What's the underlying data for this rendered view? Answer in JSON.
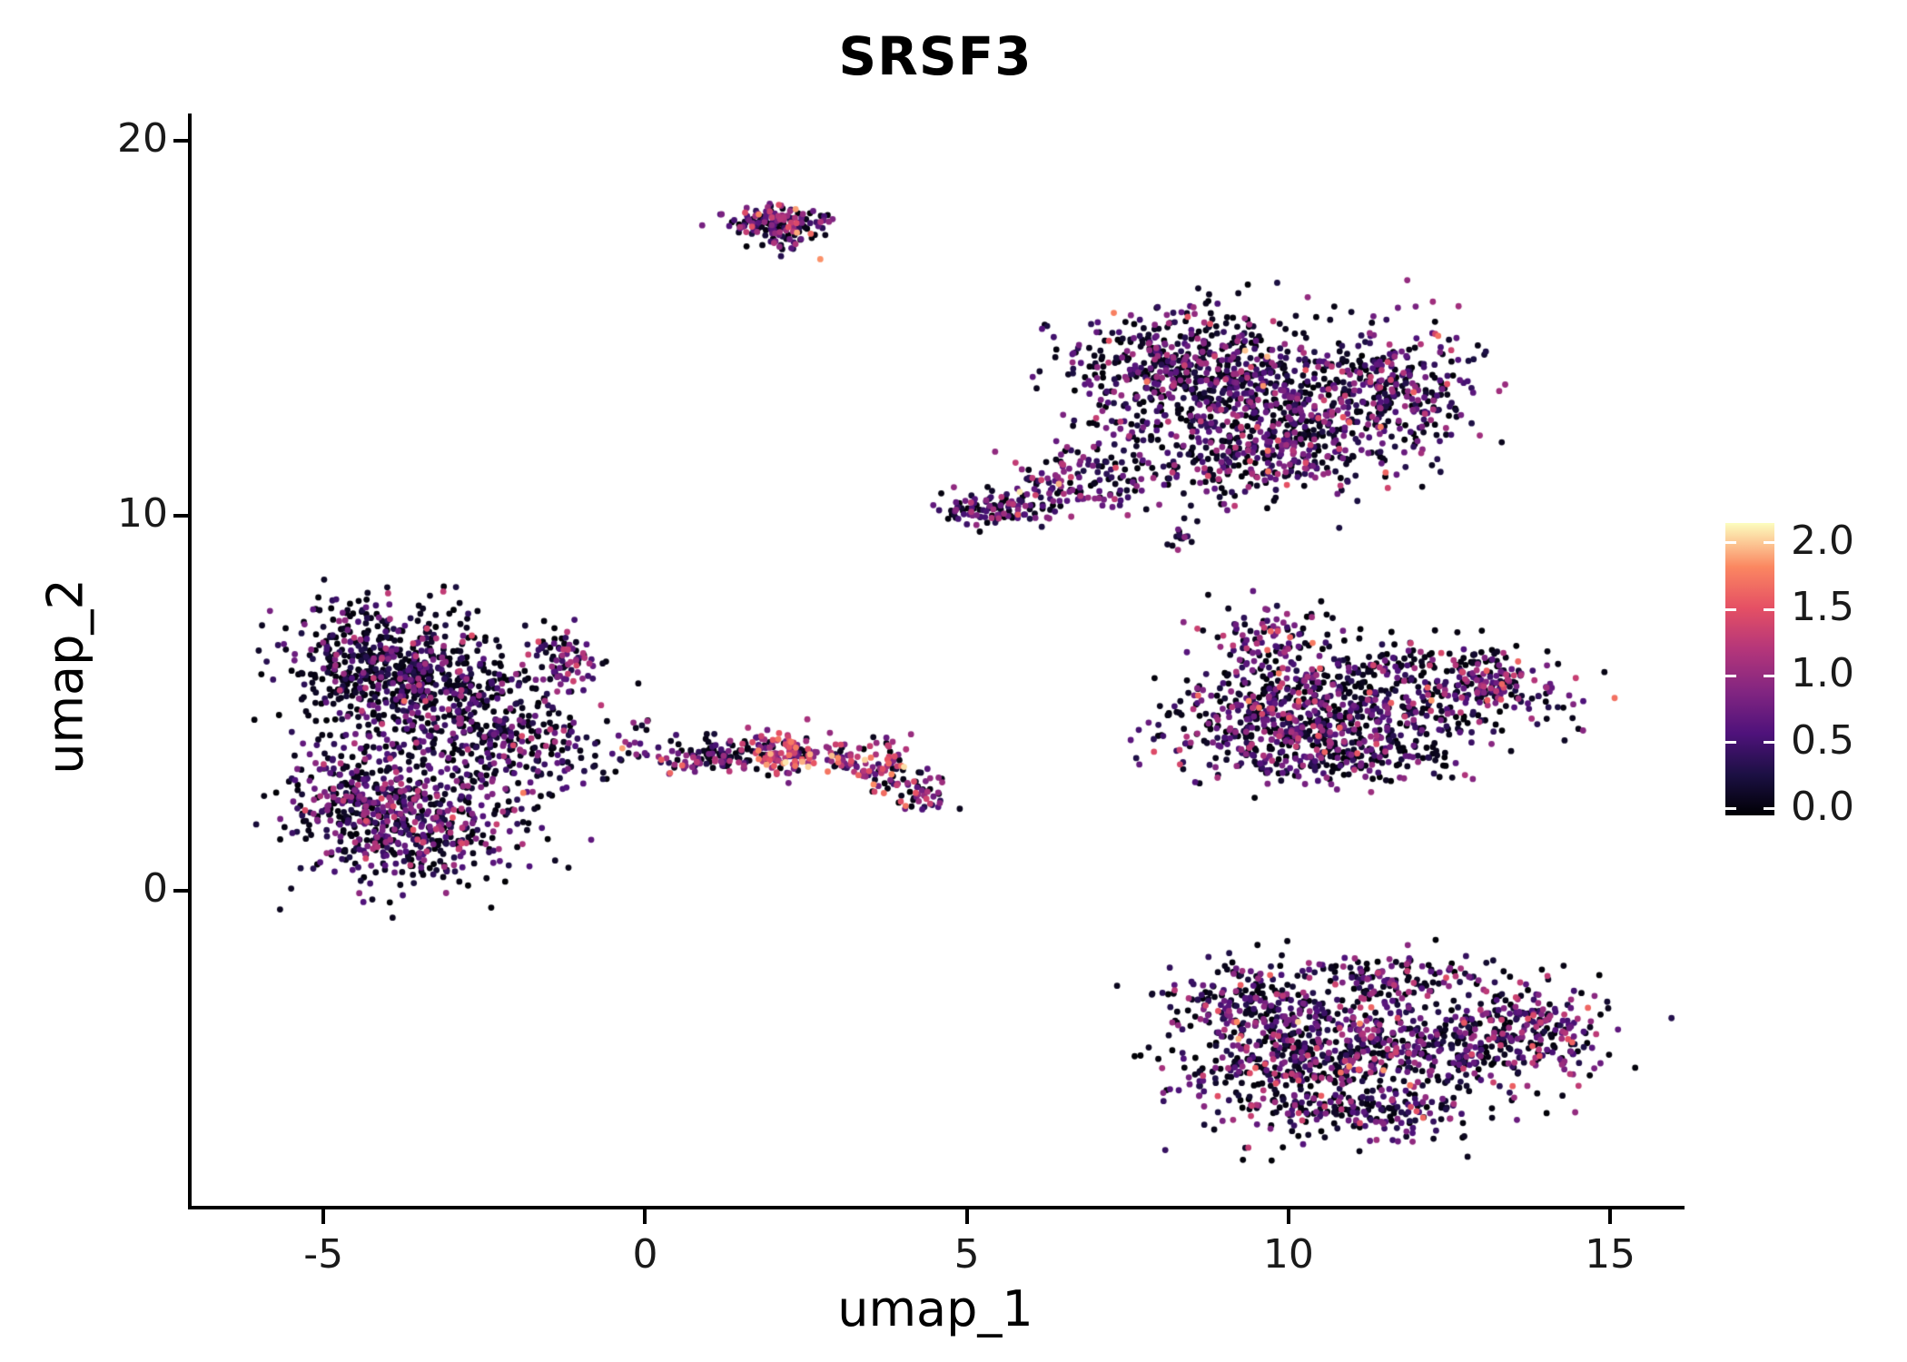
{
  "chart_data": {
    "type": "scatter",
    "title": "SRSF3",
    "xlabel": "umap_1",
    "ylabel": "umap_2",
    "xlim": [
      -7.05,
      16.1
    ],
    "ylim": [
      -8.4,
      20.66
    ],
    "x_ticks": [
      -5,
      0,
      5,
      10,
      15
    ],
    "x_tick_labels": [
      "-5",
      "0",
      "5",
      "10",
      "15"
    ],
    "y_ticks": [
      0,
      10,
      20
    ],
    "y_tick_labels": [
      "0",
      "10",
      "20"
    ],
    "grid": false,
    "legend_position": "right",
    "colorbar": {
      "vmin": -0.05,
      "vmax": 2.15,
      "ticks": [
        0.0,
        0.5,
        1.0,
        1.5,
        2.0
      ],
      "tick_labels": [
        "0.0",
        "0.5",
        "1.0",
        "1.5",
        "2.0"
      ],
      "colormap": "magma",
      "stops": [
        {
          "t": 0.0,
          "color": "#000004"
        },
        {
          "t": 0.14,
          "color": "#1c1044"
        },
        {
          "t": 0.28,
          "color": "#4f127b"
        },
        {
          "t": 0.42,
          "color": "#812581"
        },
        {
          "t": 0.57,
          "color": "#b5367a"
        },
        {
          "t": 0.71,
          "color": "#e55064"
        },
        {
          "t": 0.85,
          "color": "#fb8761"
        },
        {
          "t": 1.0,
          "color": "#fcfdbf"
        }
      ]
    },
    "point": {
      "radius": 3.4,
      "vmax": 2.2,
      "seed": 12345
    },
    "clusters": [
      {
        "name": "top-small-cluster",
        "blobs": [
          {
            "cx": 2.0,
            "cy": 17.85,
            "sx": 0.42,
            "sy": 0.22,
            "n": 150,
            "hot": 0.8,
            "zero": 0.3
          },
          {
            "cx": 2.15,
            "cy": 17.35,
            "sx": 0.18,
            "sy": 0.18,
            "n": 25,
            "hot": 0.7,
            "zero": 0.3
          }
        ]
      },
      {
        "name": "upper-right-cluster",
        "blobs": [
          {
            "cx": 8.4,
            "cy": 13.9,
            "sx": 0.95,
            "sy": 0.85,
            "n": 520,
            "hot": 0.55,
            "zero": 0.38
          },
          {
            "cx": 10.2,
            "cy": 13.0,
            "sx": 1.05,
            "sy": 0.95,
            "n": 520,
            "hot": 0.6,
            "zero": 0.33
          },
          {
            "cx": 11.8,
            "cy": 13.4,
            "sx": 0.55,
            "sy": 0.75,
            "n": 190,
            "hot": 0.65,
            "zero": 0.3
          },
          {
            "cx": 9.2,
            "cy": 11.5,
            "sx": 1.1,
            "sy": 0.55,
            "n": 260,
            "hot": 0.6,
            "zero": 0.33
          },
          {
            "cx": 6.8,
            "cy": 10.9,
            "sx": 0.55,
            "sy": 0.4,
            "n": 110,
            "hot": 0.7,
            "zero": 0.3
          },
          {
            "cx": 5.6,
            "cy": 10.25,
            "sx": 0.45,
            "sy": 0.28,
            "n": 90,
            "hot": 0.75,
            "zero": 0.25
          },
          {
            "cx": 4.95,
            "cy": 10.1,
            "sx": 0.18,
            "sy": 0.15,
            "n": 25,
            "hot": 0.6,
            "zero": 0.3
          }
        ]
      },
      {
        "name": "tiny-mid-cluster",
        "blobs": [
          {
            "cx": 8.35,
            "cy": 9.4,
            "sx": 0.13,
            "sy": 0.16,
            "n": 14,
            "hot": 0.5,
            "zero": 0.4
          }
        ]
      },
      {
        "name": "mid-right-cluster",
        "blobs": [
          {
            "cx": 9.7,
            "cy": 4.6,
            "sx": 0.85,
            "sy": 0.7,
            "n": 380,
            "hot": 0.65,
            "zero": 0.3
          },
          {
            "cx": 11.5,
            "cy": 4.9,
            "sx": 1.15,
            "sy": 0.6,
            "n": 330,
            "hot": 0.6,
            "zero": 0.35
          },
          {
            "cx": 13.1,
            "cy": 5.6,
            "sx": 0.55,
            "sy": 0.4,
            "n": 140,
            "hot": 0.8,
            "zero": 0.25
          },
          {
            "cx": 9.8,
            "cy": 6.7,
            "sx": 0.5,
            "sy": 0.6,
            "n": 110,
            "hot": 0.85,
            "zero": 0.25
          },
          {
            "cx": 10.8,
            "cy": 3.6,
            "sx": 1.0,
            "sy": 0.4,
            "n": 190,
            "hot": 0.6,
            "zero": 0.35
          },
          {
            "cx": 11.7,
            "cy": 6.2,
            "sx": 0.9,
            "sy": 0.5,
            "n": 80,
            "hot": 0.4,
            "zero": 0.5
          }
        ]
      },
      {
        "name": "left-cluster",
        "blobs": [
          {
            "cx": -4.1,
            "cy": 6.0,
            "sx": 0.75,
            "sy": 0.9,
            "n": 500,
            "hot": 0.45,
            "zero": 0.45
          },
          {
            "cx": -3.0,
            "cy": 5.2,
            "sx": 0.8,
            "sy": 0.8,
            "n": 280,
            "hot": 0.55,
            "zero": 0.4
          },
          {
            "cx": -3.6,
            "cy": 1.7,
            "sx": 0.9,
            "sy": 0.75,
            "n": 480,
            "hot": 0.6,
            "zero": 0.35
          },
          {
            "cx": -4.5,
            "cy": 2.7,
            "sx": 0.45,
            "sy": 0.6,
            "n": 180,
            "hot": 0.6,
            "zero": 0.35
          },
          {
            "cx": -2.3,
            "cy": 3.8,
            "sx": 0.7,
            "sy": 0.7,
            "n": 200,
            "hot": 0.55,
            "zero": 0.4
          },
          {
            "cx": -1.3,
            "cy": 6.1,
            "sx": 0.35,
            "sy": 0.45,
            "n": 80,
            "hot": 0.6,
            "zero": 0.35
          },
          {
            "cx": -1.1,
            "cy": 4.2,
            "sx": 0.6,
            "sy": 0.6,
            "n": 50,
            "hot": 0.6,
            "zero": 0.35
          },
          {
            "cx": -0.05,
            "cy": 4.1,
            "sx": 0.12,
            "sy": 0.3,
            "n": 12,
            "hot": 0.6,
            "zero": 0.3
          }
        ]
      },
      {
        "name": "mid-strip-cluster",
        "blobs": [
          {
            "cx": 1.3,
            "cy": 3.6,
            "sx": 0.55,
            "sy": 0.22,
            "n": 110,
            "hot": 0.7,
            "zero": 0.3
          },
          {
            "cx": 2.2,
            "cy": 3.7,
            "sx": 0.32,
            "sy": 0.28,
            "n": 110,
            "hot": 1.25,
            "zero": 0.12
          },
          {
            "cx": 3.1,
            "cy": 3.5,
            "sx": 0.14,
            "sy": 0.18,
            "n": 30,
            "hot": 1.0,
            "zero": 0.2
          },
          {
            "cx": 3.7,
            "cy": 3.3,
            "sx": 0.22,
            "sy": 0.4,
            "n": 70,
            "hot": 1.1,
            "zero": 0.2
          },
          {
            "cx": 4.35,
            "cy": 2.6,
            "sx": 0.22,
            "sy": 0.28,
            "n": 45,
            "hot": 0.8,
            "zero": 0.3
          },
          {
            "cx": 0.55,
            "cy": 3.4,
            "sx": 0.14,
            "sy": 0.14,
            "n": 14,
            "hot": 0.6,
            "zero": 0.3
          }
        ]
      },
      {
        "name": "bottom-right-cluster",
        "blobs": [
          {
            "cx": 10.1,
            "cy": -4.4,
            "sx": 1.0,
            "sy": 0.85,
            "n": 480,
            "hot": 0.6,
            "zero": 0.35
          },
          {
            "cx": 12.2,
            "cy": -4.0,
            "sx": 1.15,
            "sy": 0.8,
            "n": 430,
            "hot": 0.65,
            "zero": 0.3
          },
          {
            "cx": 13.9,
            "cy": -3.7,
            "sx": 0.5,
            "sy": 0.55,
            "n": 150,
            "hot": 0.7,
            "zero": 0.3
          },
          {
            "cx": 9.3,
            "cy": -2.9,
            "sx": 0.55,
            "sy": 0.5,
            "n": 150,
            "hot": 0.55,
            "zero": 0.4
          },
          {
            "cx": 11.3,
            "cy": -5.9,
            "sx": 0.95,
            "sy": 0.4,
            "n": 170,
            "hot": 0.6,
            "zero": 0.35
          },
          {
            "cx": 11.5,
            "cy": -2.3,
            "sx": 0.85,
            "sy": 0.3,
            "n": 100,
            "hot": 0.6,
            "zero": 0.35
          }
        ]
      }
    ]
  }
}
